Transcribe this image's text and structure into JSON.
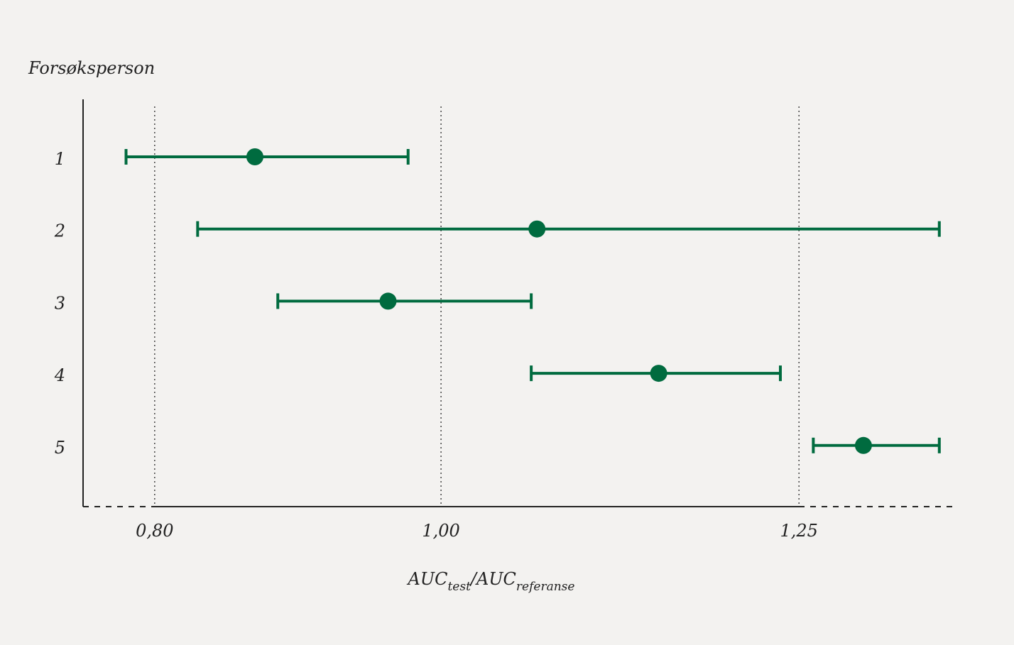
{
  "chart_data": {
    "type": "errorbar",
    "ylabel": "Forsøksperson",
    "xlabel": [
      "AUC",
      "test",
      "/",
      "AUC",
      "referanse"
    ],
    "categories": [
      "1",
      "2",
      "3",
      "4",
      "5"
    ],
    "series": [
      {
        "color": "#006b3f",
        "values": [
          0.87,
          1.067,
          0.963,
          1.152,
          1.295
        ],
        "lower": [
          0.78,
          0.83,
          0.886,
          1.063,
          1.26
        ],
        "upper": [
          0.977,
          1.348,
          1.063,
          1.237,
          1.348
        ]
      }
    ],
    "xlim": [
      0.75,
      1.36
    ],
    "xticks": [
      {
        "value": 0.8,
        "label": "0,80"
      },
      {
        "value": 1.0,
        "label": "1,00"
      },
      {
        "value": 1.25,
        "label": "1,25"
      }
    ],
    "grid": true
  }
}
